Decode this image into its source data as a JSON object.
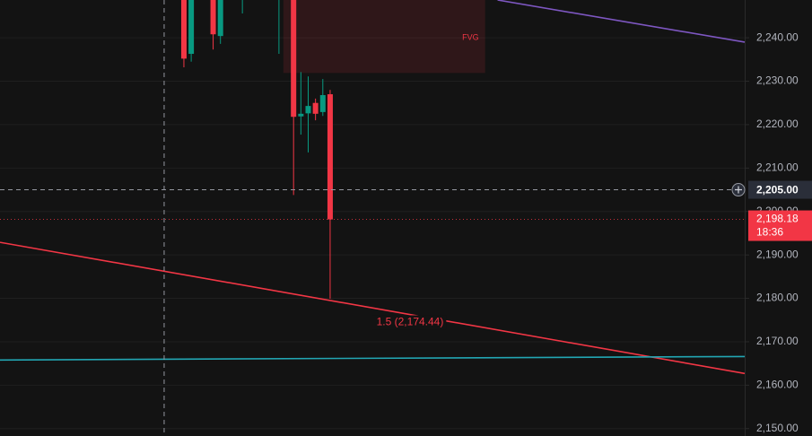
{
  "chart_data": {
    "type": "candlestick",
    "x": [
      0,
      1,
      4,
      5,
      8,
      13,
      15,
      16,
      17,
      18,
      19,
      20
    ],
    "open": [
      2249,
      2236.3,
      2250,
      2240.4,
      2250,
      2250,
      2250,
      2221.9,
      2222.6,
      2225,
      2222.9,
      2227
    ],
    "high": [
      2252,
      2252,
      2252,
      2252,
      2252,
      2252,
      2252,
      2232.1,
      2231.1,
      2226,
      2230.5,
      2228
    ],
    "low": [
      2233.2,
      2234.5,
      2237.3,
      2238.6,
      2245.6,
      2236.3,
      2203.8,
      2217.7,
      2213.6,
      2221,
      2222,
      2179.9
    ],
    "close": [
      2235.2,
      2250,
      2240.8,
      2250,
      2250,
      2250,
      2221.8,
      2222.5,
      2224.3,
      2222.5,
      2226.8,
      2198.18
    ],
    "xlim": [
      -25.15,
      76.7
    ],
    "ylim": [
      2148.3,
      2248.7
    ],
    "yticks": [
      {
        "value": 2150,
        "label": "2,150.00"
      },
      {
        "value": 2160,
        "label": "2,160.00"
      },
      {
        "value": 2170,
        "label": "2,170.00"
      },
      {
        "value": 2180,
        "label": "2,180.00"
      },
      {
        "value": 2190,
        "label": "2,190.00"
      },
      {
        "value": 2200,
        "label": "2,200.00"
      },
      {
        "value": 2210,
        "label": "2,210.00"
      },
      {
        "value": 2220,
        "label": "2,220.00"
      },
      {
        "value": 2230,
        "label": "2,230.00"
      },
      {
        "value": 2240,
        "label": "2,240.00"
      }
    ],
    "grid": true,
    "up_color": "#089981",
    "down_color": "#f23645",
    "trendlines": [
      {
        "x": [
          -25.15,
          76.7
        ],
        "y": [
          2192.9,
          2162.7
        ],
        "color": "#f23645"
      },
      {
        "x": [
          42.9,
          76.7
        ],
        "y": [
          2248.7,
          2239.0
        ],
        "color": "#7e57c2"
      },
      {
        "x": [
          -25.15,
          76.7
        ],
        "y": [
          2165.8,
          2166.6
        ],
        "color": "#22a6b3"
      }
    ],
    "zone": {
      "label": "FVG",
      "x": [
        13.6,
        41.2
      ],
      "y": [
        2231.9,
        2248.7
      ],
      "color": "#f23645"
    },
    "fib": {
      "label": "1.5 (2,174.44)",
      "value": 2174.44
    },
    "crosshair": {
      "x": -2.7,
      "y": {
        "value": 2205,
        "label": "2,205.00"
      }
    },
    "last_price": {
      "value": 2198.18,
      "label": "2,198.18",
      "countdown": "18:36"
    }
  }
}
